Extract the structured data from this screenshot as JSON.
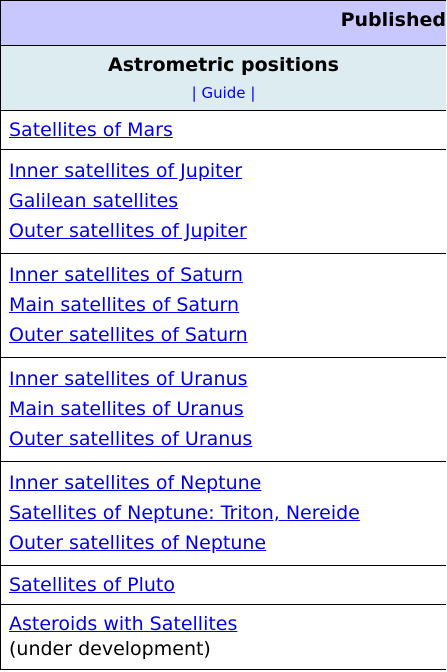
{
  "header": {
    "title": "Published"
  },
  "subheader": {
    "title": "Astrometric positions",
    "guide_left": "|",
    "guide_link": "Guide",
    "guide_right": "|"
  },
  "groups": [
    {
      "links": [
        "Satellites of Mars"
      ]
    },
    {
      "links": [
        "Inner satellites of Jupiter",
        "Galilean satellites",
        "Outer satellites of Jupiter"
      ]
    },
    {
      "links": [
        "Inner satellites of Saturn",
        "Main satellites of Saturn",
        "Outer satellites of Saturn"
      ]
    },
    {
      "links": [
        "Inner satellites of Uranus",
        "Main satellites of Uranus",
        "Outer satellites of Uranus"
      ]
    },
    {
      "links": [
        "Inner satellites of Neptune",
        "Satellites of Neptune: Triton, Nereide",
        "Outer satellites of Neptune"
      ]
    },
    {
      "links": [
        "Satellites of Pluto"
      ]
    },
    {
      "links": [
        "Asteroids with Satellites"
      ],
      "note": "(under development)"
    }
  ]
}
